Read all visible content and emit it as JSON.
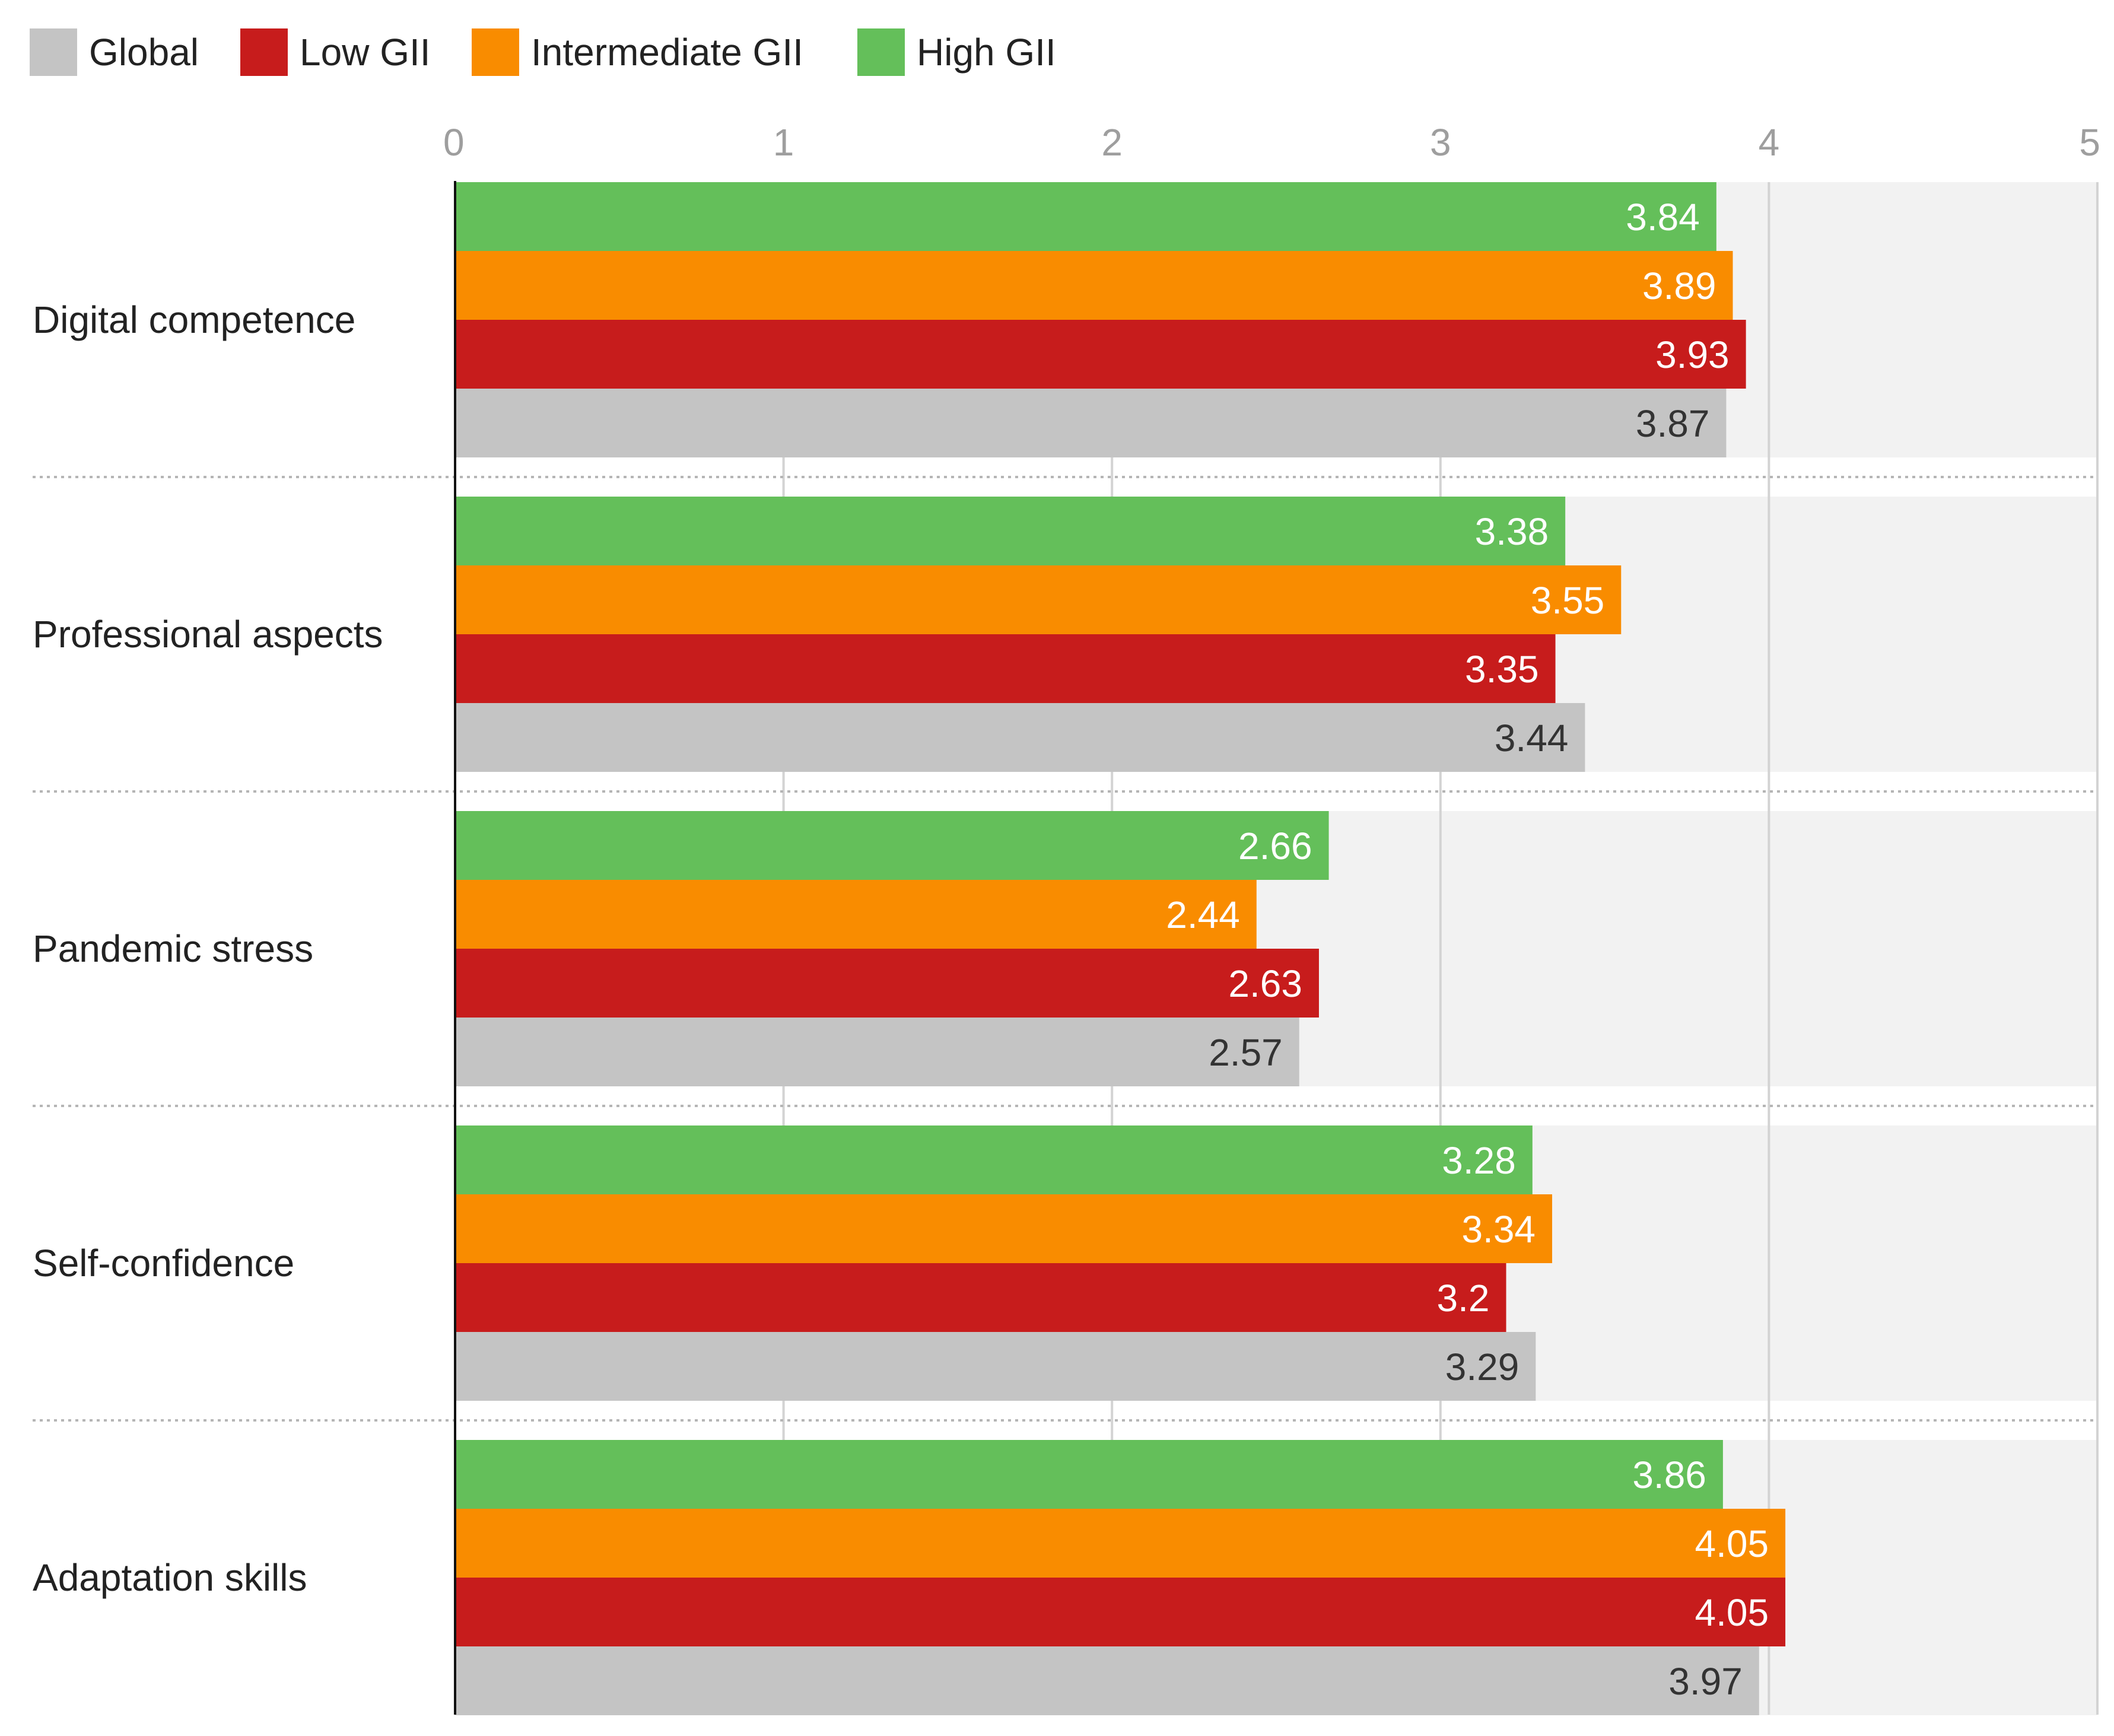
{
  "chart_data": {
    "type": "bar",
    "orientation": "horizontal",
    "title": "",
    "xlabel": "",
    "ylabel": "",
    "xlim": [
      0,
      5
    ],
    "ticks": [
      "0",
      "1",
      "2",
      "3",
      "4",
      "5"
    ],
    "grid": true,
    "legend_position": "top-left",
    "categories": [
      "Digital competence",
      "Professional aspects",
      "Pandemic stress",
      "Self-confidence",
      "Adaptation skills"
    ],
    "series": [
      {
        "name": "High GII",
        "color": "#64bf5a",
        "label_color": "#ffffff",
        "values": [
          3.84,
          3.38,
          2.66,
          3.28,
          3.86
        ],
        "labels": [
          "3.84",
          "3.38",
          "2.66",
          "3.28",
          "3.86"
        ]
      },
      {
        "name": "Intermediate GII",
        "color": "#f98c00",
        "label_color": "#ffffff",
        "values": [
          3.89,
          3.55,
          2.44,
          3.34,
          4.05
        ],
        "labels": [
          "3.89",
          "3.55",
          "2.44",
          "3.34",
          "4.05"
        ]
      },
      {
        "name": "Low GII",
        "color": "#c71c1c",
        "label_color": "#ffffff",
        "values": [
          3.93,
          3.35,
          2.63,
          3.2,
          4.05
        ],
        "labels": [
          "3.93",
          "3.35",
          "2.63",
          "3.2",
          "4.05"
        ]
      },
      {
        "name": "Global",
        "color": "#c4c4c4",
        "label_color": "#333333",
        "values": [
          3.87,
          3.44,
          2.57,
          3.29,
          3.97
        ],
        "labels": [
          "3.87",
          "3.44",
          "2.57",
          "3.29",
          "3.97"
        ]
      }
    ],
    "legend": [
      {
        "name": "Global",
        "color": "#c4c4c4"
      },
      {
        "name": "Low GII",
        "color": "#c71c1c"
      },
      {
        "name": "Intermediate GII",
        "color": "#f98c00"
      },
      {
        "name": "High GII",
        "color": "#64bf5a"
      }
    ]
  }
}
